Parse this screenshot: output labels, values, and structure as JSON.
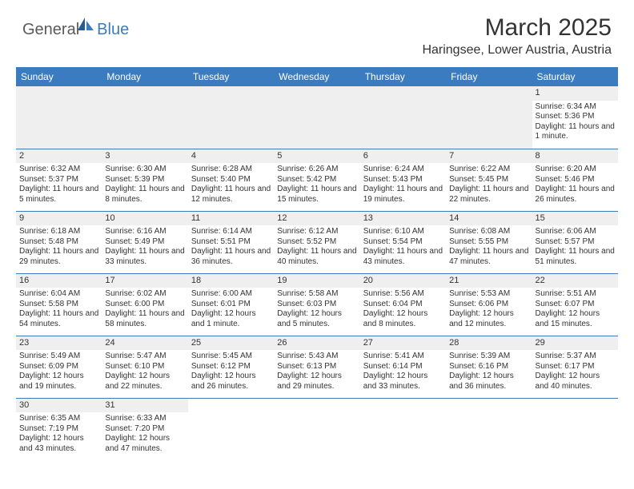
{
  "logo": {
    "textGeneral": "General",
    "textBlue": "Blue"
  },
  "title": "March 2025",
  "location": "Haringsee, Lower Austria, Austria",
  "colors": {
    "headerBlue": "#3b7bbf",
    "grayBg": "#efefef",
    "text": "#333333",
    "logoGray": "#5a5a5a"
  },
  "dayHeaders": [
    "Sunday",
    "Monday",
    "Tuesday",
    "Wednesday",
    "Thursday",
    "Friday",
    "Saturday"
  ],
  "weeks": [
    [
      {
        "blank": true
      },
      {
        "blank": true
      },
      {
        "blank": true
      },
      {
        "blank": true
      },
      {
        "blank": true
      },
      {
        "blank": true
      },
      {
        "day": "1",
        "sunrise": "Sunrise: 6:34 AM",
        "sunset": "Sunset: 5:36 PM",
        "daylight": "Daylight: 11 hours and 1 minute."
      }
    ],
    [
      {
        "day": "2",
        "sunrise": "Sunrise: 6:32 AM",
        "sunset": "Sunset: 5:37 PM",
        "daylight": "Daylight: 11 hours and 5 minutes."
      },
      {
        "day": "3",
        "sunrise": "Sunrise: 6:30 AM",
        "sunset": "Sunset: 5:39 PM",
        "daylight": "Daylight: 11 hours and 8 minutes."
      },
      {
        "day": "4",
        "sunrise": "Sunrise: 6:28 AM",
        "sunset": "Sunset: 5:40 PM",
        "daylight": "Daylight: 11 hours and 12 minutes."
      },
      {
        "day": "5",
        "sunrise": "Sunrise: 6:26 AM",
        "sunset": "Sunset: 5:42 PM",
        "daylight": "Daylight: 11 hours and 15 minutes."
      },
      {
        "day": "6",
        "sunrise": "Sunrise: 6:24 AM",
        "sunset": "Sunset: 5:43 PM",
        "daylight": "Daylight: 11 hours and 19 minutes."
      },
      {
        "day": "7",
        "sunrise": "Sunrise: 6:22 AM",
        "sunset": "Sunset: 5:45 PM",
        "daylight": "Daylight: 11 hours and 22 minutes."
      },
      {
        "day": "8",
        "sunrise": "Sunrise: 6:20 AM",
        "sunset": "Sunset: 5:46 PM",
        "daylight": "Daylight: 11 hours and 26 minutes."
      }
    ],
    [
      {
        "day": "9",
        "sunrise": "Sunrise: 6:18 AM",
        "sunset": "Sunset: 5:48 PM",
        "daylight": "Daylight: 11 hours and 29 minutes."
      },
      {
        "day": "10",
        "sunrise": "Sunrise: 6:16 AM",
        "sunset": "Sunset: 5:49 PM",
        "daylight": "Daylight: 11 hours and 33 minutes."
      },
      {
        "day": "11",
        "sunrise": "Sunrise: 6:14 AM",
        "sunset": "Sunset: 5:51 PM",
        "daylight": "Daylight: 11 hours and 36 minutes."
      },
      {
        "day": "12",
        "sunrise": "Sunrise: 6:12 AM",
        "sunset": "Sunset: 5:52 PM",
        "daylight": "Daylight: 11 hours and 40 minutes."
      },
      {
        "day": "13",
        "sunrise": "Sunrise: 6:10 AM",
        "sunset": "Sunset: 5:54 PM",
        "daylight": "Daylight: 11 hours and 43 minutes."
      },
      {
        "day": "14",
        "sunrise": "Sunrise: 6:08 AM",
        "sunset": "Sunset: 5:55 PM",
        "daylight": "Daylight: 11 hours and 47 minutes."
      },
      {
        "day": "15",
        "sunrise": "Sunrise: 6:06 AM",
        "sunset": "Sunset: 5:57 PM",
        "daylight": "Daylight: 11 hours and 51 minutes."
      }
    ],
    [
      {
        "day": "16",
        "sunrise": "Sunrise: 6:04 AM",
        "sunset": "Sunset: 5:58 PM",
        "daylight": "Daylight: 11 hours and 54 minutes."
      },
      {
        "day": "17",
        "sunrise": "Sunrise: 6:02 AM",
        "sunset": "Sunset: 6:00 PM",
        "daylight": "Daylight: 11 hours and 58 minutes."
      },
      {
        "day": "18",
        "sunrise": "Sunrise: 6:00 AM",
        "sunset": "Sunset: 6:01 PM",
        "daylight": "Daylight: 12 hours and 1 minute."
      },
      {
        "day": "19",
        "sunrise": "Sunrise: 5:58 AM",
        "sunset": "Sunset: 6:03 PM",
        "daylight": "Daylight: 12 hours and 5 minutes."
      },
      {
        "day": "20",
        "sunrise": "Sunrise: 5:56 AM",
        "sunset": "Sunset: 6:04 PM",
        "daylight": "Daylight: 12 hours and 8 minutes."
      },
      {
        "day": "21",
        "sunrise": "Sunrise: 5:53 AM",
        "sunset": "Sunset: 6:06 PM",
        "daylight": "Daylight: 12 hours and 12 minutes."
      },
      {
        "day": "22",
        "sunrise": "Sunrise: 5:51 AM",
        "sunset": "Sunset: 6:07 PM",
        "daylight": "Daylight: 12 hours and 15 minutes."
      }
    ],
    [
      {
        "day": "23",
        "sunrise": "Sunrise: 5:49 AM",
        "sunset": "Sunset: 6:09 PM",
        "daylight": "Daylight: 12 hours and 19 minutes."
      },
      {
        "day": "24",
        "sunrise": "Sunrise: 5:47 AM",
        "sunset": "Sunset: 6:10 PM",
        "daylight": "Daylight: 12 hours and 22 minutes."
      },
      {
        "day": "25",
        "sunrise": "Sunrise: 5:45 AM",
        "sunset": "Sunset: 6:12 PM",
        "daylight": "Daylight: 12 hours and 26 minutes."
      },
      {
        "day": "26",
        "sunrise": "Sunrise: 5:43 AM",
        "sunset": "Sunset: 6:13 PM",
        "daylight": "Daylight: 12 hours and 29 minutes."
      },
      {
        "day": "27",
        "sunrise": "Sunrise: 5:41 AM",
        "sunset": "Sunset: 6:14 PM",
        "daylight": "Daylight: 12 hours and 33 minutes."
      },
      {
        "day": "28",
        "sunrise": "Sunrise: 5:39 AM",
        "sunset": "Sunset: 6:16 PM",
        "daylight": "Daylight: 12 hours and 36 minutes."
      },
      {
        "day": "29",
        "sunrise": "Sunrise: 5:37 AM",
        "sunset": "Sunset: 6:17 PM",
        "daylight": "Daylight: 12 hours and 40 minutes."
      }
    ],
    [
      {
        "day": "30",
        "sunrise": "Sunrise: 6:35 AM",
        "sunset": "Sunset: 7:19 PM",
        "daylight": "Daylight: 12 hours and 43 minutes."
      },
      {
        "day": "31",
        "sunrise": "Sunrise: 6:33 AM",
        "sunset": "Sunset: 7:20 PM",
        "daylight": "Daylight: 12 hours and 47 minutes."
      },
      {
        "blank": true
      },
      {
        "blank": true
      },
      {
        "blank": true
      },
      {
        "blank": true
      },
      {
        "blank": true
      }
    ]
  ]
}
